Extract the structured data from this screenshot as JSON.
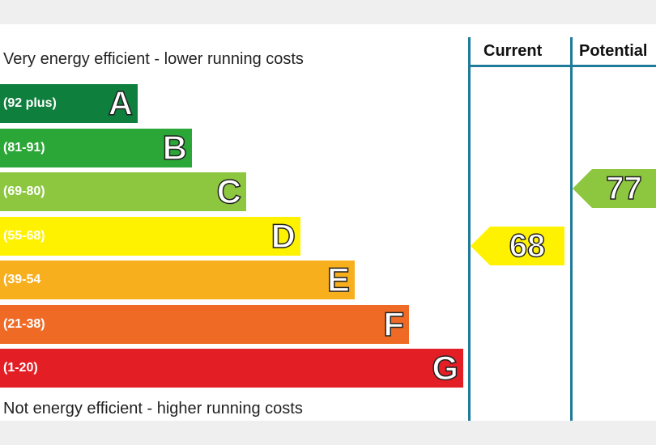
{
  "chart_data": {
    "type": "bar",
    "top_caption": "Very energy efficient - lower running costs",
    "bottom_caption": "Not energy efficient - higher running costs",
    "bands": [
      {
        "letter": "A",
        "range": "(92 plus)",
        "color": "#0f7f3e"
      },
      {
        "letter": "B",
        "range": "(81-91)",
        "color": "#2aa737"
      },
      {
        "letter": "C",
        "range": "(69-80)",
        "color": "#8dc73f"
      },
      {
        "letter": "D",
        "range": "(55-68)",
        "color": "#fff200"
      },
      {
        "letter": "E",
        "range": "(39-54",
        "color": "#f7af1d"
      },
      {
        "letter": "F",
        "range": "(21-38)",
        "color": "#ef6a25"
      },
      {
        "letter": "G",
        "range": "(1-20)",
        "color": "#e31e25"
      }
    ],
    "columns": [
      "Current",
      "Potential"
    ],
    "current": {
      "value": "68",
      "band": "D",
      "color": "#fff200"
    },
    "potential": {
      "value": "77",
      "band": "C",
      "color": "#8dc73f"
    },
    "line_color": "#1e7b99"
  }
}
